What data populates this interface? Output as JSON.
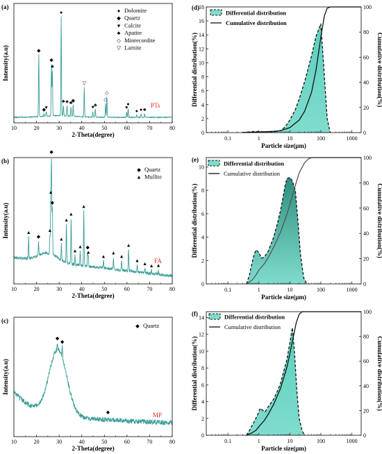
{
  "colors": {
    "xrd": "#3a9e96",
    "fill": "#7fdccd",
    "fill_dark": "#2f8f7f",
    "dash": "#111111",
    "cum": "#111111",
    "sample_label": "#e0302a"
  },
  "chart_data": [
    {
      "type": "line",
      "panel": "(a)",
      "xlabel": "2-Theta(degree)",
      "ylabel": "Intensity(a.u)",
      "sample": "PTs",
      "xlim": [
        10,
        80
      ],
      "xticks": [
        "10",
        "20",
        "30",
        "40",
        "50",
        "60",
        "70",
        "80"
      ],
      "peaks": [
        {
          "x": 21.0,
          "h": 0.55,
          "m": "quartz"
        },
        {
          "x": 23.3,
          "h": 0.02,
          "m": "quartz"
        },
        {
          "x": 24.3,
          "h": 0.04,
          "m": "calcite"
        },
        {
          "x": 26.6,
          "h": 0.46,
          "m": "quartz"
        },
        {
          "x": 27.0,
          "h": 0.4,
          "m": "apatite"
        },
        {
          "x": 30.9,
          "h": 0.88,
          "m": "dolomite"
        },
        {
          "x": 31.9,
          "h": 0.09,
          "m": "apatite"
        },
        {
          "x": 33.5,
          "h": 0.09,
          "m": "apatite"
        },
        {
          "x": 35.2,
          "h": 0.08,
          "m": "apatite"
        },
        {
          "x": 36.2,
          "h": 0.1,
          "m": "quartz"
        },
        {
          "x": 41.1,
          "h": 0.26,
          "m": "larnite"
        },
        {
          "x": 44.9,
          "h": 0.05,
          "m": "calcite"
        },
        {
          "x": 46.0,
          "h": 0.07,
          "m": "apatite"
        },
        {
          "x": 50.5,
          "h": 0.12,
          "m": "minrecordite"
        },
        {
          "x": 51.1,
          "h": 0.18,
          "m": "minrecordite"
        },
        {
          "x": 59.8,
          "h": 0.05,
          "m": "calcite"
        },
        {
          "x": 60.5,
          "h": 0.08,
          "m": "dolomite"
        },
        {
          "x": 64.3,
          "h": 0.02,
          "m": "dolomite"
        },
        {
          "x": 66.2,
          "h": 0.03,
          "m": "dolomite"
        },
        {
          "x": 67.8,
          "h": 0.03,
          "m": "apatite"
        }
      ],
      "legend": [
        {
          "symbol": "●",
          "label": "Dolomite"
        },
        {
          "symbol": "◆",
          "label": "Quartz"
        },
        {
          "symbol": "♥",
          "label": "Calcite"
        },
        {
          "symbol": "♣",
          "label": "Apatite"
        },
        {
          "symbol": "◇",
          "label": "Minrecordite"
        },
        {
          "symbol": "▽",
          "label": "Larnite"
        }
      ]
    },
    {
      "type": "line",
      "panel": "(b)",
      "xlabel": "2-Theta(degree)",
      "ylabel": "Intensity(a.u)",
      "sample": "FA",
      "xlim": [
        10,
        80
      ],
      "xticks": [
        "10",
        "20",
        "30",
        "40",
        "50",
        "60",
        "70",
        "80"
      ],
      "peaks": [
        {
          "x": 16.5,
          "h": 0.18,
          "m": "mullite"
        },
        {
          "x": 20.9,
          "h": 0.12,
          "m": "quartz"
        },
        {
          "x": 25.9,
          "h": 0.16,
          "m": "mullite"
        },
        {
          "x": 26.3,
          "h": 0.48,
          "m": "mullite"
        },
        {
          "x": 26.6,
          "h": 0.82,
          "m": "quartz"
        },
        {
          "x": 27.0,
          "h": 0.4,
          "m": "quartz"
        },
        {
          "x": 31.0,
          "h": 0.14,
          "m": "mullite"
        },
        {
          "x": 33.2,
          "h": 0.32,
          "m": "mullite"
        },
        {
          "x": 35.3,
          "h": 0.38,
          "m": "mullite"
        },
        {
          "x": 37.0,
          "h": 0.08,
          "m": "mullite"
        },
        {
          "x": 39.3,
          "h": 0.12,
          "m": "mullite"
        },
        {
          "x": 40.9,
          "h": 0.46,
          "m": "mullite"
        },
        {
          "x": 42.6,
          "h": 0.12,
          "m": "quartz"
        },
        {
          "x": 42.9,
          "h": 0.08,
          "m": "mullite"
        },
        {
          "x": 49.6,
          "h": 0.06,
          "m": "mullite"
        },
        {
          "x": 54.0,
          "h": 0.1,
          "m": "mullite"
        },
        {
          "x": 57.6,
          "h": 0.08,
          "m": "mullite"
        },
        {
          "x": 60.7,
          "h": 0.18,
          "m": "mullite"
        },
        {
          "x": 64.5,
          "h": 0.06,
          "m": "mullite"
        },
        {
          "x": 67.9,
          "h": 0.04,
          "m": "mullite"
        },
        {
          "x": 70.8,
          "h": 0.03,
          "m": "mullite"
        },
        {
          "x": 73.9,
          "h": 0.04,
          "m": "mullite"
        }
      ],
      "legend": [
        {
          "symbol": "◆",
          "label": "Quartz"
        },
        {
          "symbol": "▲",
          "label": "Mullite"
        }
      ]
    },
    {
      "type": "line",
      "panel": "(c)",
      "xlabel": "2-Theta(degree)",
      "ylabel": "Intensity(a.u)",
      "sample": "MP",
      "xlim": [
        10,
        80
      ],
      "xticks": [
        "10",
        "20",
        "30",
        "40",
        "50",
        "60",
        "70",
        "80"
      ],
      "peaks": [
        {
          "x": 29.2,
          "h": 0.06,
          "m": "quartz"
        },
        {
          "x": 31.4,
          "h": 0.1,
          "m": "quartz"
        },
        {
          "x": 51.6,
          "h": 0.03,
          "m": "quartz"
        }
      ],
      "legend": [
        {
          "symbol": "◆",
          "label": "Quartz"
        }
      ]
    },
    {
      "type": "area",
      "panel": "(d)",
      "xlabel": "Particle size(μm)",
      "ylabel": "Differential distribution(%)",
      "y2label": "Cumulative distribution(%)",
      "xscale": "log",
      "xlim": [
        0.02,
        2000
      ],
      "ylim": [
        0,
        18
      ],
      "y2lim": [
        0,
        100
      ],
      "yticks": [
        0,
        2,
        4,
        6,
        8,
        10,
        12,
        14,
        16,
        18
      ],
      "y2ticks": [
        0,
        20,
        40,
        60,
        80,
        100
      ],
      "xticks": [
        "0.1",
        "1",
        "10",
        "100",
        "1000"
      ],
      "legend": [
        "Differential distribution",
        "Cumulative distribution"
      ],
      "differential": {
        "x": [
          0.3,
          0.4,
          0.6,
          1,
          2,
          3,
          5,
          7,
          10,
          15,
          20,
          30,
          50,
          70,
          100,
          130,
          160,
          200
        ],
        "y": [
          0,
          0.05,
          0.15,
          0.15,
          0.1,
          0.1,
          0.3,
          0.8,
          1.8,
          3.3,
          4.8,
          7.3,
          11,
          13.8,
          15.6,
          8,
          2,
          0
        ]
      },
      "cumulative": {
        "x": [
          0.3,
          1,
          3,
          5,
          10,
          20,
          30,
          50,
          70,
          100,
          130,
          160,
          200,
          300,
          2000
        ],
        "y": [
          0,
          0.5,
          1,
          1.5,
          4,
          10,
          17,
          32,
          50,
          76,
          93,
          99,
          100,
          100,
          100
        ]
      }
    },
    {
      "type": "area",
      "panel": "(e)",
      "xlabel": "Particle size(μm)",
      "ylabel": "Differential distribution(%)",
      "y2label": "Cumulative distribution(%)",
      "xscale": "log",
      "xlim": [
        0.02,
        2000
      ],
      "ylim": [
        0,
        10.8
      ],
      "y2lim": [
        0,
        100
      ],
      "yticks": [
        0,
        2,
        4,
        6,
        8,
        10
      ],
      "y2ticks": [
        0,
        20,
        40,
        60,
        80,
        100
      ],
      "xticks": [
        "0.1",
        "1",
        "10",
        "100",
        "1000"
      ],
      "legend": [
        "Differential distribution",
        "Cumulative distribution"
      ],
      "differential": {
        "x": [
          0.4,
          0.5,
          0.6,
          0.7,
          0.8,
          1,
          1.2,
          1.5,
          2,
          3,
          4,
          5,
          6,
          7,
          8,
          10,
          12,
          15,
          18,
          22,
          28,
          35
        ],
        "y": [
          0,
          0.8,
          1.8,
          2.5,
          2.9,
          2.7,
          2.2,
          2.3,
          2.8,
          4,
          5.2,
          6.3,
          7.4,
          8.4,
          9.0,
          9.1,
          8.8,
          8.0,
          5.5,
          2.5,
          0.5,
          0
        ]
      },
      "cumulative": {
        "x": [
          0.4,
          0.6,
          0.8,
          1,
          1.5,
          2,
          3,
          5,
          8,
          10,
          15,
          20,
          30,
          40,
          50,
          60,
          2000
        ],
        "y": [
          0,
          3,
          7,
          11,
          16,
          21,
          29,
          41,
          55,
          63,
          78,
          88,
          96,
          99,
          100,
          100,
          100
        ]
      }
    },
    {
      "type": "area",
      "panel": "(f)",
      "xlabel": "Particle size(μm)",
      "ylabel": "Differential distribution(%)",
      "y2label": "Cumulative distribution(%)",
      "xscale": "log",
      "xlim": [
        0.02,
        2000
      ],
      "ylim": [
        0,
        14.7
      ],
      "y2lim": [
        0,
        100
      ],
      "yticks": [
        0,
        2,
        4,
        6,
        8,
        10,
        12,
        14
      ],
      "y2ticks": [
        0,
        20,
        40,
        60,
        80,
        100
      ],
      "xticks": [
        "0.1",
        "1",
        "10",
        "100",
        "1000"
      ],
      "legend": [
        "Differential distribution",
        "Cumulative distribution"
      ],
      "differential": {
        "x": [
          0.4,
          0.5,
          0.7,
          0.9,
          1.1,
          1.3,
          1.6,
          2,
          3,
          4,
          5,
          6,
          8,
          10,
          12,
          14,
          17,
          20,
          25,
          30
        ],
        "y": [
          0,
          0.6,
          1.6,
          2.4,
          3.2,
          3.0,
          2.8,
          3.4,
          4.3,
          5.3,
          6.2,
          7.3,
          9.0,
          11,
          12.8,
          10,
          5,
          2,
          0.5,
          0
        ]
      },
      "cumulative": {
        "x": [
          0.4,
          0.6,
          0.8,
          1,
          1.5,
          2,
          3,
          5,
          8,
          10,
          13,
          16,
          20,
          25,
          30,
          2000
        ],
        "y": [
          0,
          2,
          4,
          7,
          12,
          17,
          25,
          38,
          55,
          66,
          80,
          91,
          98,
          100,
          100,
          100
        ]
      }
    }
  ]
}
